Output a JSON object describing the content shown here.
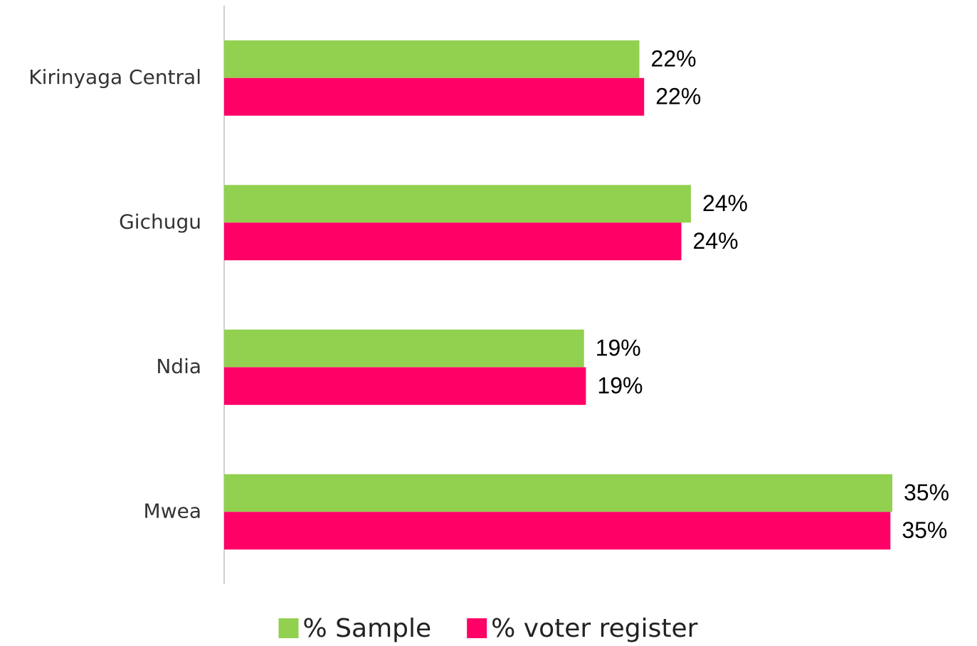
{
  "chart_data": {
    "type": "hbar",
    "categories": [
      "Kirinyaga Central",
      "Gichugu",
      "Ndia",
      "Mwea"
    ],
    "series": [
      {
        "name": "% Sample",
        "color": "#92d050",
        "values": [
          21.75,
          24.45,
          18.85,
          35
        ],
        "value_labels": [
          "22%",
          "24%",
          "19%",
          "35%"
        ]
      },
      {
        "name": "% voter register",
        "color": "#ff0066",
        "values": [
          22,
          23.95,
          18.95,
          34.9
        ],
        "value_labels": [
          "22%",
          "24%",
          "19%",
          "35%"
        ]
      }
    ],
    "legend": "bottom"
  }
}
